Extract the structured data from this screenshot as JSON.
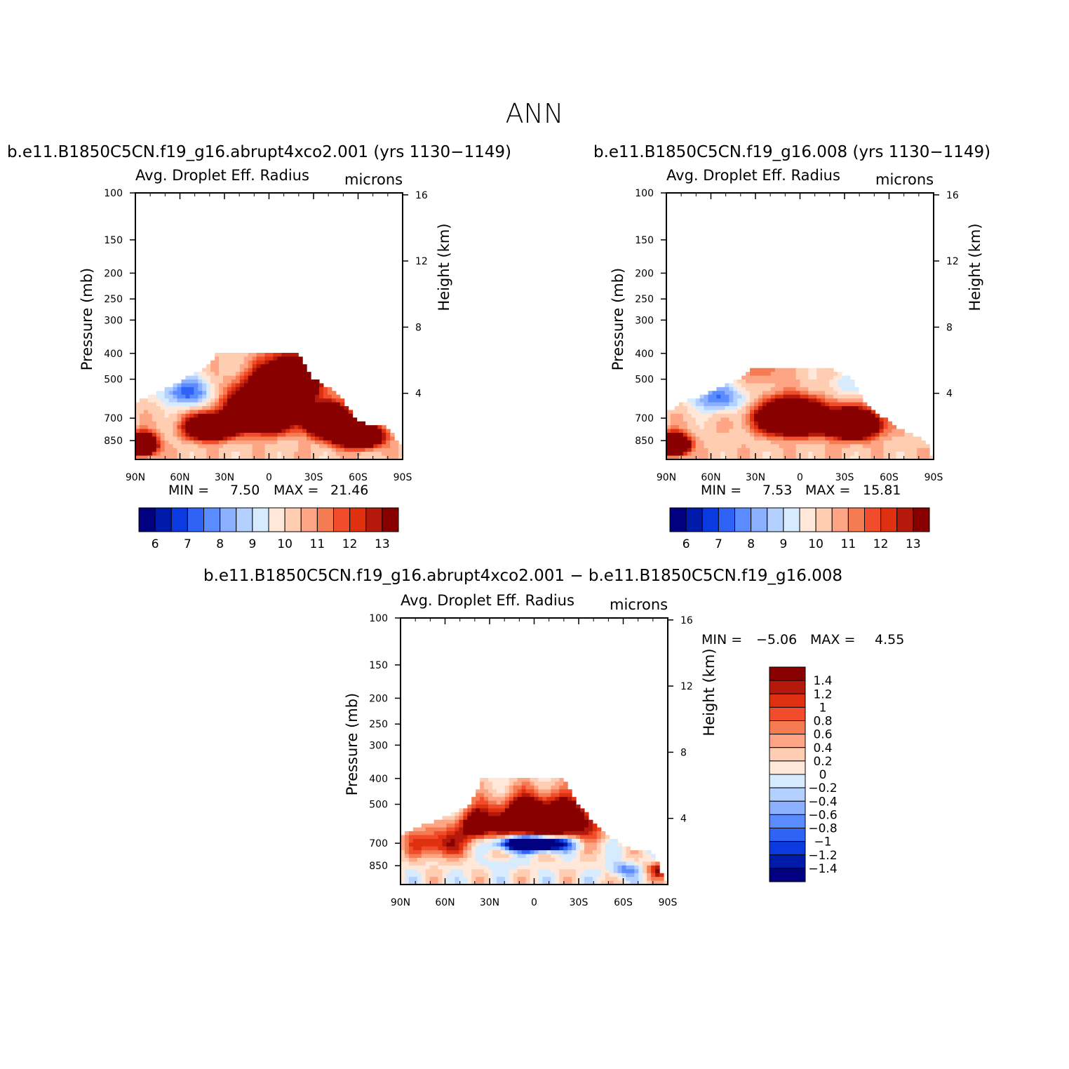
{
  "figure": {
    "title": "ANN",
    "colors": {
      "abs_levels": [
        "#000080",
        "#001aaa",
        "#0a3ae0",
        "#2f63f5",
        "#5a8cff",
        "#8ab0ff",
        "#b4d0ff",
        "#d7ebff",
        "#ffe8d9",
        "#ffcdb2",
        "#fda585",
        "#f57b52",
        "#f14c2b",
        "#df300f",
        "#b5190c",
        "#880000"
      ],
      "diff_levels": [
        "#000080",
        "#001aaa",
        "#0a3ae0",
        "#2f63f5",
        "#5a8cff",
        "#8ab0ff",
        "#b4d0ff",
        "#d7ebff",
        "#ffe8d9",
        "#ffcdb2",
        "#fda585",
        "#f57b52",
        "#f14c2b",
        "#df300f",
        "#b5190c",
        "#880000"
      ]
    }
  },
  "panels": [
    {
      "case_label": "b.e11.B1850C5CN.f19_g16.abrupt4xco2.001  (yrs  1130−1149)",
      "variable": "Avg.  Droplet  Eff.  Radius",
      "units": "microns",
      "min_label": "MIN  =",
      "min_value": "7.50",
      "max_label": "MAX  =",
      "max_value": "21.46"
    },
    {
      "case_label": "b.e11.B1850C5CN.f19_g16.008  (yrs  1130−1149)",
      "variable": "Avg.  Droplet  Eff.  Radius",
      "units": "microns",
      "min_label": "MIN  =",
      "min_value": "7.53",
      "max_label": "MAX  =",
      "max_value": "15.81"
    },
    {
      "case_label": "b.e11.B1850C5CN.f19_g16.abrupt4xco2.001  −  b.e11.B1850C5CN.f19_g16.008",
      "variable": "Avg.  Droplet  Eff.  Radius",
      "units": "microns",
      "min_label": "MIN  =",
      "min_value": "−5.06",
      "max_label": "MAX  =",
      "max_value": "4.55"
    }
  ],
  "chart_data": [
    {
      "type": "heatmap",
      "title": "b.e11.B1850C5CN.f19_g16.abrupt4xco2.001  (yrs  1130−1149)",
      "subtitle": "Avg.  Droplet  Eff.  Radius",
      "units": "microns",
      "xlabel": "",
      "ylabel": "Pressure  (mb)",
      "y2label": "Height  (km)",
      "x_tick_labels": [
        "90N",
        "60N",
        "30N",
        "0",
        "30S",
        "60S",
        "90S"
      ],
      "x_tick_values": [
        90,
        60,
        30,
        0,
        -30,
        -60,
        -90
      ],
      "y_tick_labels": [
        "100",
        "150",
        "200",
        "250",
        "300",
        "400",
        "500",
        "700",
        "850"
      ],
      "y_tick_values": [
        100,
        150,
        200,
        250,
        300,
        400,
        500,
        700,
        850
      ],
      "y2_tick_labels": [
        "16",
        "12",
        "8",
        "4"
      ],
      "y2_tick_values": [
        16,
        12,
        8,
        4
      ],
      "xlim": [
        90,
        -90
      ],
      "ylim": [
        1000,
        100
      ],
      "colorbar_labels": [
        "6",
        "7",
        "8",
        "9",
        "10",
        "11",
        "12",
        "13"
      ],
      "colorbar_levels": [
        5.5,
        6,
        6.5,
        7,
        7.5,
        8,
        8.5,
        9,
        9.5,
        10,
        10.5,
        11,
        11.5,
        12,
        12.5,
        13
      ],
      "min": 7.5,
      "max": 21.46,
      "features": [
        {
          "lat": 4,
          "p": 650,
          "value": 14.5,
          "slat": 20,
          "sp": 110
        },
        {
          "lat": -40,
          "p": 720,
          "value": 13.5,
          "slat": 13,
          "sp": 85
        },
        {
          "lat": -60,
          "p": 820,
          "value": 12.2,
          "slat": 14,
          "sp": 70
        },
        {
          "lat": -15,
          "p": 500,
          "value": 10.5,
          "slat": 18,
          "sp": 80
        },
        {
          "lat": 85,
          "p": 880,
          "value": 12.5,
          "slat": 8,
          "sp": 70
        },
        {
          "lat": 40,
          "p": 760,
          "value": 11.2,
          "slat": 14,
          "sp": 70
        },
        {
          "lat": 55,
          "p": 560,
          "value": -3.0,
          "slat": 18,
          "sp": 70
        },
        {
          "lat": -45,
          "p": 480,
          "value": -0.8,
          "slat": 10,
          "sp": 60
        }
      ],
      "base_value": 9.8,
      "top_mask": [
        [
          90,
          610
        ],
        [
          75,
          560
        ],
        [
          60,
          510
        ],
        [
          42,
          450
        ],
        [
          35,
          400
        ],
        [
          -20,
          400
        ],
        [
          -30,
          500
        ],
        [
          -45,
          560
        ],
        [
          -55,
          650
        ],
        [
          -60,
          720
        ],
        [
          -80,
          760
        ],
        [
          -90,
          900
        ]
      ]
    },
    {
      "type": "heatmap",
      "title": "b.e11.B1850C5CN.f19_g16.008  (yrs  1130−1149)",
      "subtitle": "Avg.  Droplet  Eff.  Radius",
      "units": "microns",
      "xlabel": "",
      "ylabel": "Pressure  (mb)",
      "y2label": "Height  (km)",
      "x_tick_labels": [
        "90N",
        "60N",
        "30N",
        "0",
        "30S",
        "60S",
        "90S"
      ],
      "x_tick_values": [
        90,
        60,
        30,
        0,
        -30,
        -60,
        -90
      ],
      "y_tick_labels": [
        "100",
        "150",
        "200",
        "250",
        "300",
        "400",
        "500",
        "700",
        "850"
      ],
      "y_tick_values": [
        100,
        150,
        200,
        250,
        300,
        400,
        500,
        700,
        850
      ],
      "y2_tick_labels": [
        "16",
        "12",
        "8",
        "4"
      ],
      "y2_tick_values": [
        16,
        12,
        8,
        4
      ],
      "xlim": [
        90,
        -90
      ],
      "ylim": [
        1000,
        100
      ],
      "colorbar_labels": [
        "6",
        "7",
        "8",
        "9",
        "10",
        "11",
        "12",
        "13"
      ],
      "colorbar_levels": [
        5.5,
        6,
        6.5,
        7,
        7.5,
        8,
        8.5,
        9,
        9.5,
        10,
        10.5,
        11,
        11.5,
        12,
        12.5,
        13
      ],
      "min": 7.53,
      "max": 15.81,
      "features": [
        {
          "lat": 5,
          "p": 700,
          "value": 13.0,
          "slat": 20,
          "sp": 90
        },
        {
          "lat": -35,
          "p": 740,
          "value": 12.3,
          "slat": 16,
          "sp": 80
        },
        {
          "lat": 85,
          "p": 880,
          "value": 12.0,
          "slat": 9,
          "sp": 70
        },
        {
          "lat": 55,
          "p": 590,
          "value": -2.8,
          "slat": 18,
          "sp": 70
        },
        {
          "lat": -30,
          "p": 520,
          "value": -1.2,
          "slat": 12,
          "sp": 60
        },
        {
          "lat": 25,
          "p": 450,
          "value": 1.5,
          "slat": 10,
          "sp": 60
        }
      ],
      "base_value": 9.8,
      "top_mask": [
        [
          90,
          660
        ],
        [
          75,
          600
        ],
        [
          60,
          560
        ],
        [
          42,
          500
        ],
        [
          30,
          450
        ],
        [
          -20,
          450
        ],
        [
          -35,
          500
        ],
        [
          -45,
          620
        ],
        [
          -60,
          720
        ],
        [
          -70,
          780
        ],
        [
          -85,
          850
        ],
        [
          -90,
          1000
        ]
      ]
    },
    {
      "type": "heatmap",
      "title": "b.e11.B1850C5CN.f19_g16.abrupt4xco2.001  −  b.e11.B1850C5CN.f19_g16.008",
      "subtitle": "Avg.  Droplet  Eff.  Radius",
      "units": "microns",
      "xlabel": "",
      "ylabel": "Pressure  (mb)",
      "y2label": "Height  (km)",
      "x_tick_labels": [
        "90N",
        "60N",
        "30N",
        "0",
        "30S",
        "60S",
        "90S"
      ],
      "x_tick_values": [
        90,
        60,
        30,
        0,
        -30,
        -60,
        -90
      ],
      "y_tick_labels": [
        "100",
        "150",
        "200",
        "250",
        "300",
        "400",
        "500",
        "700",
        "850"
      ],
      "y_tick_values": [
        100,
        150,
        200,
        250,
        300,
        400,
        500,
        700,
        850
      ],
      "y2_tick_labels": [
        "16",
        "12",
        "8",
        "4"
      ],
      "y2_tick_values": [
        16,
        12,
        8,
        4
      ],
      "xlim": [
        90,
        -90
      ],
      "ylim": [
        1000,
        100
      ],
      "colorbar_labels": [
        "1.4",
        "1.2",
        "1",
        "0.8",
        "0.6",
        "0.4",
        "0.2",
        "0",
        "−0.2",
        "−0.4",
        "−0.6",
        "−0.8",
        "−1",
        "−1.2",
        "−1.4"
      ],
      "colorbar_levels": [
        -1.4,
        -1.2,
        -1,
        -0.8,
        -0.6,
        -0.4,
        -0.2,
        0,
        0.2,
        0.4,
        0.6,
        0.8,
        1,
        1.2,
        1.4
      ],
      "min": -5.06,
      "max": 4.55,
      "features": [
        {
          "lat": -5,
          "p": 580,
          "value": 3.0,
          "slat": 35,
          "sp": 110
        },
        {
          "lat": 0,
          "p": 700,
          "value": -4.5,
          "slat": 22,
          "sp": 45
        },
        {
          "lat": 65,
          "p": 700,
          "value": 1.3,
          "slat": 20,
          "sp": 90
        },
        {
          "lat": -60,
          "p": 880,
          "value": -0.8,
          "slat": 10,
          "sp": 50
        },
        {
          "lat": -85,
          "p": 880,
          "value": 1.4,
          "slat": 8,
          "sp": 60
        },
        {
          "lat": 40,
          "p": 600,
          "value": 1.5,
          "slat": 10,
          "sp": 70
        },
        {
          "lat": 20,
          "p": 840,
          "value": -0.3,
          "slat": 15,
          "sp": 40
        }
      ],
      "base_value": 0.1,
      "top_mask": [
        [
          90,
          650
        ],
        [
          80,
          610
        ],
        [
          60,
          560
        ],
        [
          45,
          510
        ],
        [
          35,
          400
        ],
        [
          -20,
          400
        ],
        [
          -30,
          500
        ],
        [
          -40,
          580
        ],
        [
          -50,
          650
        ],
        [
          -60,
          720
        ],
        [
          -80,
          760
        ],
        [
          -90,
          1000
        ]
      ]
    }
  ]
}
